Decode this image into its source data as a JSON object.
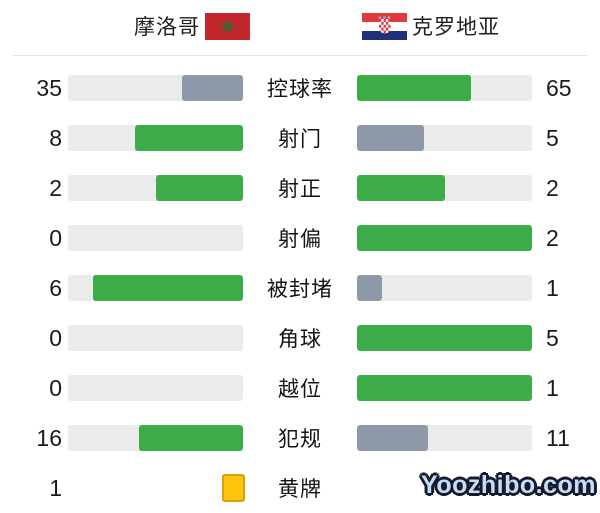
{
  "header": {
    "home": {
      "name": "摩洛哥",
      "flag_icon": "morocco-flag"
    },
    "away": {
      "name": "克罗地亚",
      "flag_icon": "croatia-flag"
    }
  },
  "stats": {
    "rows": [
      {
        "label": "控球率",
        "home": {
          "value": "35",
          "style": "gray",
          "fill_pct": 35
        },
        "away": {
          "value": "65",
          "style": "green",
          "fill_pct": 65
        }
      },
      {
        "label": "射门",
        "home": {
          "value": "8",
          "style": "green",
          "fill_pct": 61.5
        },
        "away": {
          "value": "5",
          "style": "gray",
          "fill_pct": 38.5
        }
      },
      {
        "label": "射正",
        "home": {
          "value": "2",
          "style": "green",
          "fill_pct": 50
        },
        "away": {
          "value": "2",
          "style": "green",
          "fill_pct": 50
        }
      },
      {
        "label": "射偏",
        "home": {
          "value": "0",
          "style": "track",
          "fill_pct": 0
        },
        "away": {
          "value": "2",
          "style": "green",
          "fill_pct": 100
        }
      },
      {
        "label": "被封堵",
        "home": {
          "value": "6",
          "style": "green",
          "fill_pct": 85.7
        },
        "away": {
          "value": "1",
          "style": "gray",
          "fill_pct": 14.3
        }
      },
      {
        "label": "角球",
        "home": {
          "value": "0",
          "style": "track",
          "fill_pct": 0
        },
        "away": {
          "value": "5",
          "style": "green",
          "fill_pct": 100
        }
      },
      {
        "label": "越位",
        "home": {
          "value": "0",
          "style": "track",
          "fill_pct": 0
        },
        "away": {
          "value": "1",
          "style": "green",
          "fill_pct": 100
        }
      },
      {
        "label": "犯规",
        "home": {
          "value": "16",
          "style": "green",
          "fill_pct": 59.3
        },
        "away": {
          "value": "11",
          "style": "gray",
          "fill_pct": 40.7
        }
      },
      {
        "label": "黄牌",
        "home": {
          "value": "1",
          "style": "card",
          "fill_pct": 0
        },
        "away": {
          "value": "",
          "style": "none",
          "fill_pct": 0
        }
      }
    ]
  },
  "watermark": {
    "text": "Yoozhibo.com"
  },
  "colors": {
    "leading_fill": "#3bac48",
    "trailing_fill": "#8d98a9",
    "bar_track": "#ebebeb",
    "yellow_card": "#ffc40e",
    "yellow_card_border": "#d7a100",
    "morocco_flag_red": "#c1272d",
    "croatia_blue": "#20307a",
    "croatia_red": "#e0393e"
  },
  "chart_data": {
    "type": "bar",
    "orientation": "horizontal-paired",
    "title": "摩洛哥 vs 克罗地亚",
    "categories": [
      "控球率",
      "射门",
      "射正",
      "射偏",
      "被封堵",
      "角球",
      "越位",
      "犯规",
      "黄牌"
    ],
    "series": [
      {
        "name": "摩洛哥",
        "values": [
          35,
          8,
          2,
          0,
          6,
          0,
          0,
          16,
          1
        ]
      },
      {
        "name": "克罗地亚",
        "values": [
          65,
          5,
          2,
          2,
          1,
          5,
          1,
          11,
          null
        ]
      }
    ],
    "legend_position": "top",
    "layout_notes": "paired bars fill from center outward; higher value green, lower value blue-gray; yellow-card row shows card icon; away yellow-card value hidden by watermark"
  }
}
